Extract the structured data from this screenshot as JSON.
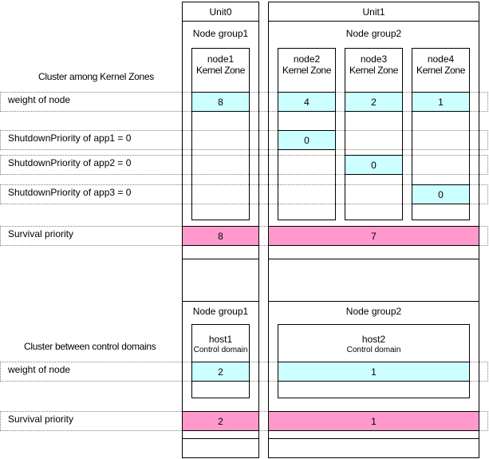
{
  "units": [
    "Unit0",
    "Unit1"
  ],
  "kernel": {
    "caption": "Cluster among Kernel Zones",
    "node_groups": [
      "Node group1",
      "Node group2"
    ],
    "nodes": [
      {
        "name": "node1",
        "type": "Kernel Zone",
        "weight": "8"
      },
      {
        "name": "node2",
        "type": "Kernel Zone",
        "weight": "4"
      },
      {
        "name": "node3",
        "type": "Kernel Zone",
        "weight": "2"
      },
      {
        "name": "node4",
        "type": "Kernel Zone",
        "weight": "1"
      }
    ],
    "weight_label": "weight  of node",
    "apps": [
      {
        "label": "ShutdownPriority  of app1 = 0",
        "value": "0"
      },
      {
        "label": "ShutdownPriority  of app2 = 0",
        "value": "0"
      },
      {
        "label": "ShutdownPriority  of app3 = 0",
        "value": "0"
      }
    ],
    "survival_label": "Survival   priority",
    "survival_values": [
      "8",
      "7"
    ]
  },
  "control": {
    "caption": "Cluster between control domains",
    "node_groups": [
      "Node group1",
      "Node group2"
    ],
    "hosts": [
      {
        "name": "host1",
        "type": "Control domain",
        "weight": "2"
      },
      {
        "name": "host2",
        "type": "Control domain",
        "weight": "1"
      }
    ],
    "weight_label": "weight  of node",
    "survival_label": "Survival   priority",
    "survival_values": [
      "2",
      "1"
    ]
  },
  "colors": {
    "weight_fill": "#ccffff",
    "survival_fill": "#ff99cc"
  }
}
